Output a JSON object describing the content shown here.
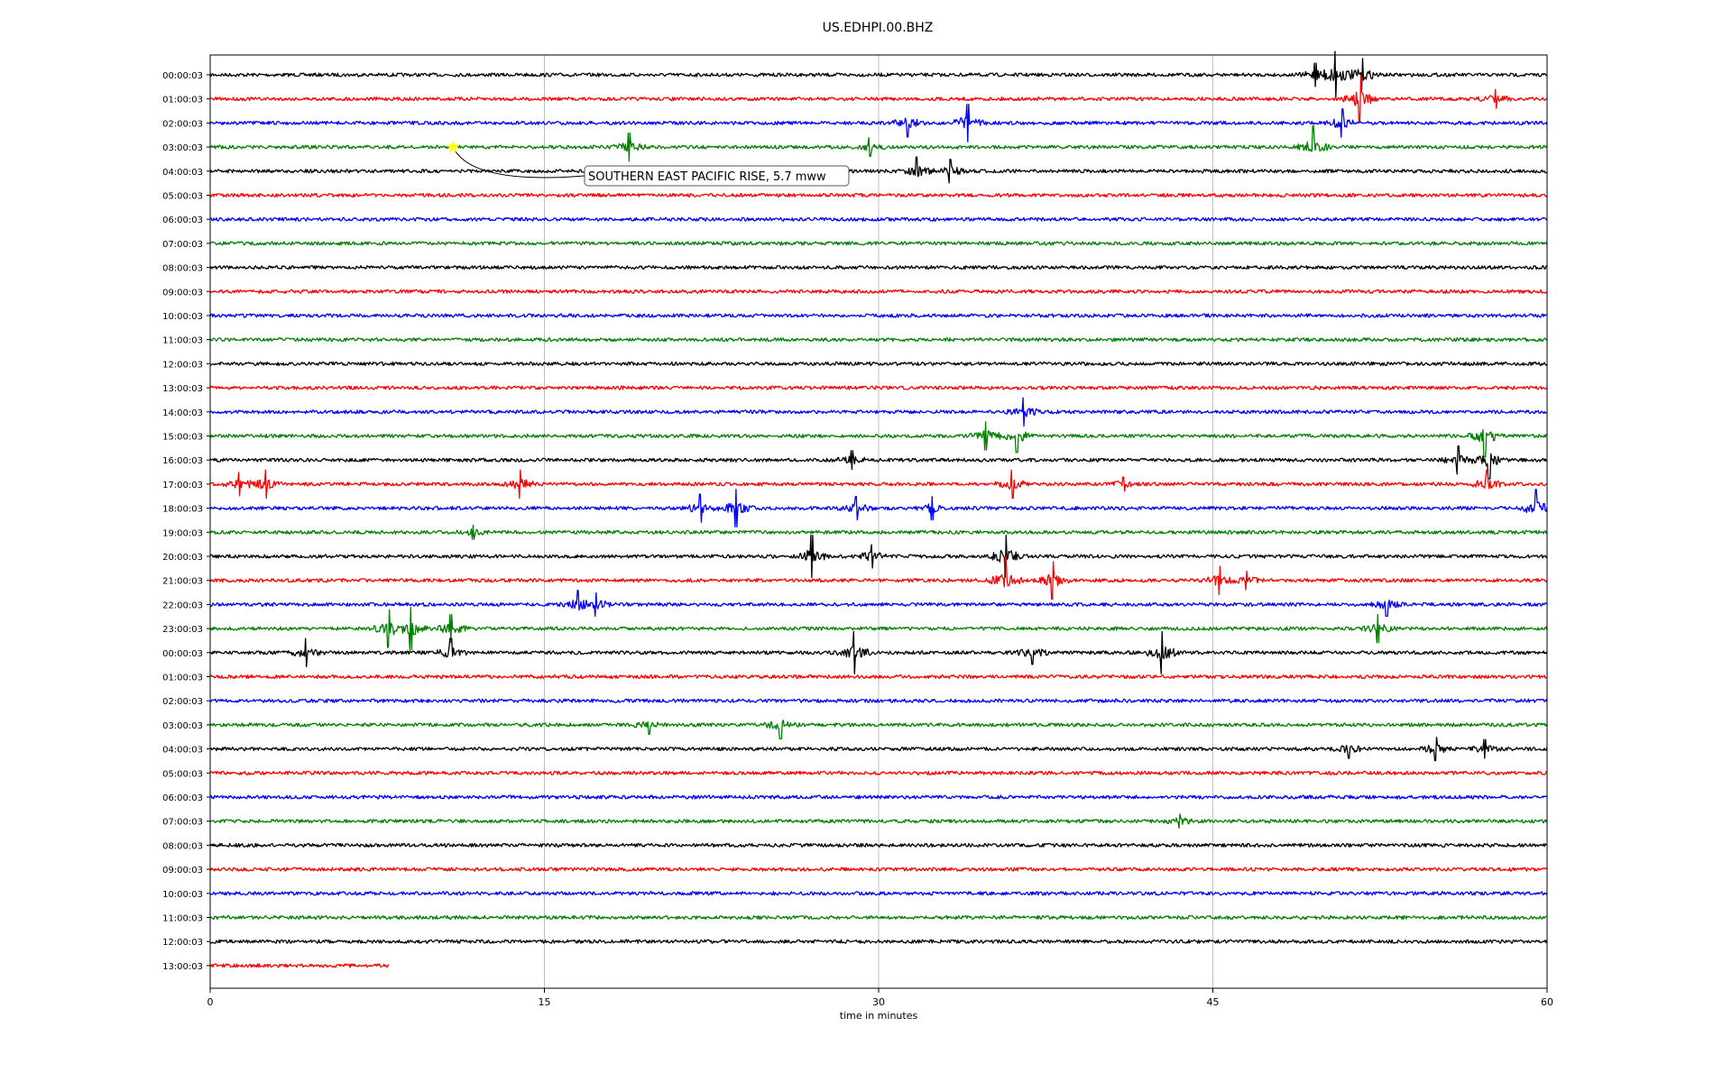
{
  "chart_data": {
    "type": "line",
    "title": "US.EDHPI.00.BHZ",
    "xlabel": "time in minutes",
    "ylabel": "",
    "xlim": [
      0,
      60
    ],
    "x_ticks": [
      0,
      15,
      30,
      45,
      60
    ],
    "x_tick_labels": [
      "0",
      "15",
      "30",
      "45",
      "60"
    ],
    "grid": "vertical lines at x ticks",
    "legend": "none",
    "trace_colors": [
      "#000000",
      "#ff0000",
      "#0000ff",
      "#008000"
    ],
    "row_labels": [
      "00:00:03",
      "01:00:03",
      "02:00:03",
      "03:00:03",
      "04:00:03",
      "05:00:03",
      "06:00:03",
      "07:00:03",
      "08:00:03",
      "09:00:03",
      "10:00:03",
      "11:00:03",
      "12:00:03",
      "13:00:03",
      "14:00:03",
      "15:00:03",
      "16:00:03",
      "17:00:03",
      "18:00:03",
      "19:00:03",
      "20:00:03",
      "21:00:03",
      "22:00:03",
      "23:00:03",
      "00:00:03",
      "01:00:03",
      "02:00:03",
      "03:00:03",
      "04:00:03",
      "05:00:03",
      "06:00:03",
      "07:00:03",
      "08:00:03",
      "09:00:03",
      "10:00:03",
      "11:00:03",
      "12:00:03",
      "13:00:03"
    ],
    "last_row_end_minute": 8,
    "events": [
      {
        "row": 0,
        "minute": 50.5,
        "amp": 1.0
      },
      {
        "row": 0,
        "minute": 51.7,
        "amp": 0.7
      },
      {
        "row": 0,
        "minute": 49.6,
        "amp": 0.5
      },
      {
        "row": 1,
        "minute": 51.6,
        "amp": 1.0
      },
      {
        "row": 1,
        "minute": 57.7,
        "amp": 0.4
      },
      {
        "row": 2,
        "minute": 31.3,
        "amp": 0.6
      },
      {
        "row": 2,
        "minute": 34.0,
        "amp": 0.8
      },
      {
        "row": 2,
        "minute": 50.8,
        "amp": 0.6
      },
      {
        "row": 3,
        "minute": 18.8,
        "amp": 0.6
      },
      {
        "row": 3,
        "minute": 29.6,
        "amp": 0.4
      },
      {
        "row": 3,
        "minute": 49.5,
        "amp": 0.9
      },
      {
        "row": 4,
        "minute": 31.7,
        "amp": 0.6
      },
      {
        "row": 4,
        "minute": 33.2,
        "amp": 0.5
      },
      {
        "row": 14,
        "minute": 36.5,
        "amp": 0.6
      },
      {
        "row": 15,
        "minute": 34.8,
        "amp": 0.6
      },
      {
        "row": 15,
        "minute": 36.2,
        "amp": 0.7
      },
      {
        "row": 15,
        "minute": 57.2,
        "amp": 0.9
      },
      {
        "row": 16,
        "minute": 28.8,
        "amp": 0.4
      },
      {
        "row": 16,
        "minute": 56.0,
        "amp": 0.6
      },
      {
        "row": 16,
        "minute": 57.4,
        "amp": 0.8
      },
      {
        "row": 17,
        "minute": 1.3,
        "amp": 0.5
      },
      {
        "row": 17,
        "minute": 2.5,
        "amp": 0.6
      },
      {
        "row": 17,
        "minute": 13.9,
        "amp": 0.6
      },
      {
        "row": 17,
        "minute": 36.0,
        "amp": 0.6
      },
      {
        "row": 17,
        "minute": 41.0,
        "amp": 0.3
      },
      {
        "row": 17,
        "minute": 57.3,
        "amp": 0.6
      },
      {
        "row": 18,
        "minute": 22.0,
        "amp": 0.6
      },
      {
        "row": 18,
        "minute": 23.6,
        "amp": 0.8
      },
      {
        "row": 18,
        "minute": 29.0,
        "amp": 0.5
      },
      {
        "row": 18,
        "minute": 32.4,
        "amp": 0.5
      },
      {
        "row": 18,
        "minute": 59.5,
        "amp": 0.8
      },
      {
        "row": 19,
        "minute": 11.8,
        "amp": 0.3
      },
      {
        "row": 20,
        "minute": 27.0,
        "amp": 0.9
      },
      {
        "row": 20,
        "minute": 29.7,
        "amp": 0.5
      },
      {
        "row": 20,
        "minute": 35.7,
        "amp": 0.9
      },
      {
        "row": 21,
        "minute": 35.7,
        "amp": 1.0
      },
      {
        "row": 21,
        "minute": 37.8,
        "amp": 0.8
      },
      {
        "row": 21,
        "minute": 45.3,
        "amp": 0.6
      },
      {
        "row": 21,
        "minute": 46.5,
        "amp": 0.4
      },
      {
        "row": 22,
        "minute": 16.5,
        "amp": 0.6
      },
      {
        "row": 22,
        "minute": 17.3,
        "amp": 0.5
      },
      {
        "row": 22,
        "minute": 52.8,
        "amp": 0.5
      },
      {
        "row": 23,
        "minute": 8.0,
        "amp": 0.8
      },
      {
        "row": 23,
        "minute": 9.0,
        "amp": 0.9
      },
      {
        "row": 23,
        "minute": 10.8,
        "amp": 0.6
      },
      {
        "row": 23,
        "minute": 52.4,
        "amp": 0.6
      },
      {
        "row": 24,
        "minute": 4.3,
        "amp": 0.6
      },
      {
        "row": 24,
        "minute": 10.8,
        "amp": 0.6
      },
      {
        "row": 24,
        "minute": 28.9,
        "amp": 0.9
      },
      {
        "row": 24,
        "minute": 36.9,
        "amp": 0.5
      },
      {
        "row": 24,
        "minute": 42.7,
        "amp": 0.9
      },
      {
        "row": 27,
        "minute": 19.7,
        "amp": 0.4
      },
      {
        "row": 27,
        "minute": 25.6,
        "amp": 0.6
      },
      {
        "row": 28,
        "minute": 51.1,
        "amp": 0.4
      },
      {
        "row": 28,
        "minute": 55.0,
        "amp": 0.5
      },
      {
        "row": 28,
        "minute": 57.2,
        "amp": 0.4
      },
      {
        "row": 31,
        "minute": 43.5,
        "amp": 0.3
      }
    ],
    "annotations": [
      {
        "text": "SOUTHERN EAST PACIFIC RISE, 5.7 mww",
        "row": 3,
        "minute": 10.9,
        "marker": "star",
        "marker_color": "#ffff00"
      }
    ]
  }
}
